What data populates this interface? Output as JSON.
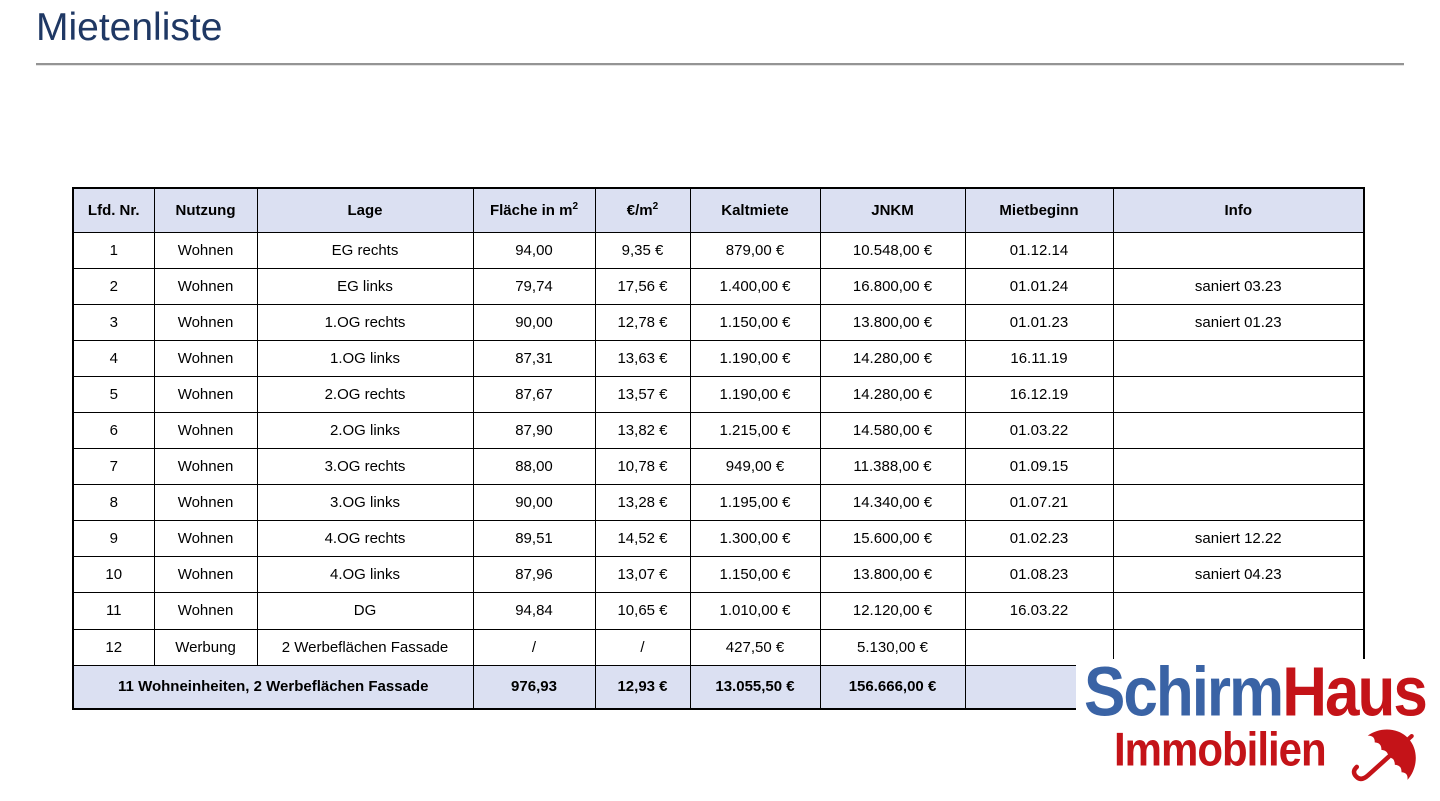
{
  "title": "Mietenliste",
  "table": {
    "columns": [
      {
        "label": "Lfd. Nr."
      },
      {
        "label": "Nutzung"
      },
      {
        "label": "Lage"
      },
      {
        "label": "Fläche in m",
        "sup": "2"
      },
      {
        "label": "€/m",
        "sup": "2"
      },
      {
        "label": "Kaltmiete"
      },
      {
        "label": "JNKM"
      },
      {
        "label": "Mietbeginn"
      },
      {
        "label": "Info"
      }
    ],
    "rows": [
      [
        "1",
        "Wohnen",
        "EG rechts",
        "94,00",
        "9,35 €",
        "879,00 €",
        "10.548,00 €",
        "01.12.14",
        ""
      ],
      [
        "2",
        "Wohnen",
        "EG links",
        "79,74",
        "17,56 €",
        "1.400,00 €",
        "16.800,00 €",
        "01.01.24",
        "saniert 03.23"
      ],
      [
        "3",
        "Wohnen",
        "1.OG rechts",
        "90,00",
        "12,78 €",
        "1.150,00 €",
        "13.800,00 €",
        "01.01.23",
        "saniert 01.23"
      ],
      [
        "4",
        "Wohnen",
        "1.OG links",
        "87,31",
        "13,63 €",
        "1.190,00 €",
        "14.280,00 €",
        "16.11.19",
        ""
      ],
      [
        "5",
        "Wohnen",
        "2.OG rechts",
        "87,67",
        "13,57 €",
        "1.190,00 €",
        "14.280,00 €",
        "16.12.19",
        ""
      ],
      [
        "6",
        "Wohnen",
        "2.OG links",
        "87,90",
        "13,82 €",
        "1.215,00 €",
        "14.580,00 €",
        "01.03.22",
        ""
      ],
      [
        "7",
        "Wohnen",
        "3.OG rechts",
        "88,00",
        "10,78 €",
        "949,00 €",
        "11.388,00 €",
        "01.09.15",
        ""
      ],
      [
        "8",
        "Wohnen",
        "3.OG links",
        "90,00",
        "13,28 €",
        "1.195,00 €",
        "14.340,00 €",
        "01.07.21",
        ""
      ],
      [
        "9",
        "Wohnen",
        "4.OG rechts",
        "89,51",
        "14,52 €",
        "1.300,00 €",
        "15.600,00 €",
        "01.02.23",
        "saniert 12.22"
      ],
      [
        "10",
        "Wohnen",
        "4.OG links",
        "87,96",
        "13,07 €",
        "1.150,00 €",
        "13.800,00 €",
        "01.08.23",
        "saniert 04.23"
      ],
      [
        "11",
        "Wohnen",
        "DG",
        "94,84",
        "10,65 €",
        "1.010,00 €",
        "12.120,00 €",
        "16.03.22",
        ""
      ],
      [
        "12",
        "Werbung",
        "2 Werbeflächen Fassade",
        "/",
        "/",
        "427,50 €",
        "5.130,00 €",
        "",
        ""
      ]
    ],
    "footer": {
      "label": "11 Wohneinheiten, 2 Werbeflächen Fassade",
      "flaeche": "976,93",
      "eur_qm": "12,93 €",
      "kaltmiete": "13.055,50 €",
      "jnkm": "156.666,00 €",
      "mietbeginn": "",
      "info": ""
    }
  },
  "logo": {
    "part1": "Schirm",
    "part2": "Haus",
    "subtitle": "Immobilien",
    "icon": "umbrella-icon"
  },
  "colors": {
    "title_blue": "#1f3864",
    "header_row_bg": "#dbe0f2",
    "table_border": "#000000",
    "logo_blue": "#3a63a5",
    "logo_red": "#c41318",
    "divider_gray": "#949494"
  }
}
